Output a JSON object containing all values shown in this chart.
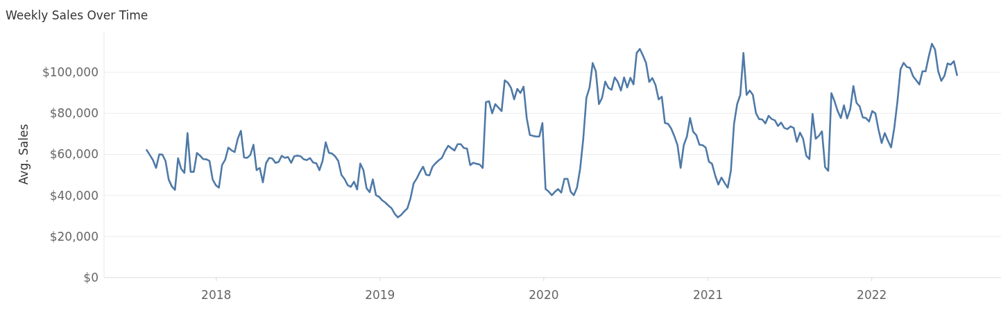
{
  "chart_data": {
    "type": "line",
    "title": "Weekly Sales Over Time",
    "ylabel": "Avg. Sales",
    "xlim": [
      "2017-04-26",
      "2022-10-16"
    ],
    "xticks": [
      {
        "value": "2018-01-01",
        "label": "2018"
      },
      {
        "value": "2019-01-01",
        "label": "2019"
      },
      {
        "value": "2020-01-01",
        "label": "2020"
      },
      {
        "value": "2021-01-01",
        "label": "2021"
      },
      {
        "value": "2022-01-01",
        "label": "2022"
      }
    ],
    "ylim": [
      0,
      120000
    ],
    "yticks": [
      {
        "value": 0,
        "label": "$0"
      },
      {
        "value": 20000,
        "label": "$20,000"
      },
      {
        "value": 40000,
        "label": "$40,000"
      },
      {
        "value": 60000,
        "label": "$60,000"
      },
      {
        "value": 80000,
        "label": "$80,000"
      },
      {
        "value": 100000,
        "label": "$100,000"
      }
    ],
    "grid": "y",
    "marker": "none",
    "line_style": "solid",
    "x": [
      "2017-07-30",
      "2017-08-06",
      "2017-08-13",
      "2017-08-20",
      "2017-08-27",
      "2017-09-03",
      "2017-09-10",
      "2017-09-17",
      "2017-09-24",
      "2017-10-01",
      "2017-10-08",
      "2017-10-15",
      "2017-10-22",
      "2017-10-29",
      "2017-11-05",
      "2017-11-12",
      "2017-11-19",
      "2017-11-26",
      "2017-12-03",
      "2017-12-10",
      "2017-12-17",
      "2017-12-24",
      "2017-12-31",
      "2018-01-07",
      "2018-01-14",
      "2018-01-21",
      "2018-01-28",
      "2018-02-04",
      "2018-02-11",
      "2018-02-18",
      "2018-02-25",
      "2018-03-04",
      "2018-03-11",
      "2018-03-18",
      "2018-03-25",
      "2018-04-01",
      "2018-04-08",
      "2018-04-15",
      "2018-04-22",
      "2018-04-29",
      "2018-05-06",
      "2018-05-13",
      "2018-05-20",
      "2018-05-27",
      "2018-06-03",
      "2018-06-10",
      "2018-06-17",
      "2018-06-24",
      "2018-07-01",
      "2018-07-08",
      "2018-07-15",
      "2018-07-22",
      "2018-07-29",
      "2018-08-05",
      "2018-08-12",
      "2018-08-19",
      "2018-08-26",
      "2018-09-02",
      "2018-09-09",
      "2018-09-16",
      "2018-09-23",
      "2018-09-30",
      "2018-10-07",
      "2018-10-14",
      "2018-10-21",
      "2018-10-28",
      "2018-11-04",
      "2018-11-11",
      "2018-11-18",
      "2018-11-25",
      "2018-12-02",
      "2018-12-09",
      "2018-12-16",
      "2018-12-23",
      "2018-12-30",
      "2019-01-06",
      "2019-01-13",
      "2019-01-20",
      "2019-01-27",
      "2019-02-03",
      "2019-02-10",
      "2019-02-17",
      "2019-02-24",
      "2019-03-03",
      "2019-03-10",
      "2019-03-17",
      "2019-03-24",
      "2019-03-31",
      "2019-04-07",
      "2019-04-14",
      "2019-04-21",
      "2019-04-28",
      "2019-05-05",
      "2019-05-12",
      "2019-05-19",
      "2019-05-26",
      "2019-06-02",
      "2019-06-09",
      "2019-06-16",
      "2019-06-23",
      "2019-06-30",
      "2019-07-07",
      "2019-07-14",
      "2019-07-21",
      "2019-07-28",
      "2019-08-04",
      "2019-08-11",
      "2019-08-18",
      "2019-08-25",
      "2019-09-01",
      "2019-09-08",
      "2019-09-15",
      "2019-09-22",
      "2019-09-29",
      "2019-10-06",
      "2019-10-13",
      "2019-10-20",
      "2019-10-27",
      "2019-11-03",
      "2019-11-10",
      "2019-11-17",
      "2019-11-24",
      "2019-12-01",
      "2019-12-08",
      "2019-12-15",
      "2019-12-22",
      "2019-12-29",
      "2020-01-05",
      "2020-01-12",
      "2020-01-19",
      "2020-01-26",
      "2020-02-02",
      "2020-02-09",
      "2020-02-16",
      "2020-02-23",
      "2020-03-01",
      "2020-03-08",
      "2020-03-15",
      "2020-03-22",
      "2020-03-29",
      "2020-04-05",
      "2020-04-12",
      "2020-04-19",
      "2020-04-26",
      "2020-05-03",
      "2020-05-10",
      "2020-05-17",
      "2020-05-24",
      "2020-05-31",
      "2020-06-07",
      "2020-06-14",
      "2020-06-21",
      "2020-06-28",
      "2020-07-05",
      "2020-07-12",
      "2020-07-19",
      "2020-07-26",
      "2020-08-02",
      "2020-08-09",
      "2020-08-16",
      "2020-08-23",
      "2020-08-30",
      "2020-09-06",
      "2020-09-13",
      "2020-09-20",
      "2020-09-27",
      "2020-10-04",
      "2020-10-11",
      "2020-10-18",
      "2020-10-25",
      "2020-11-01",
      "2020-11-08",
      "2020-11-15",
      "2020-11-22",
      "2020-11-29",
      "2020-12-06",
      "2020-12-13",
      "2020-12-20",
      "2020-12-27",
      "2021-01-03",
      "2021-01-10",
      "2021-01-17",
      "2021-01-24",
      "2021-01-31",
      "2021-02-07",
      "2021-02-14",
      "2021-02-21",
      "2021-02-28",
      "2021-03-07",
      "2021-03-14",
      "2021-03-21",
      "2021-03-28",
      "2021-04-04",
      "2021-04-11",
      "2021-04-18",
      "2021-04-25",
      "2021-05-02",
      "2021-05-09",
      "2021-05-16",
      "2021-05-23",
      "2021-05-30",
      "2021-06-06",
      "2021-06-13",
      "2021-06-20",
      "2021-06-27",
      "2021-07-04",
      "2021-07-11",
      "2021-07-18",
      "2021-07-25",
      "2021-08-01",
      "2021-08-08",
      "2021-08-15",
      "2021-08-22",
      "2021-08-29",
      "2021-09-05",
      "2021-09-12",
      "2021-09-19",
      "2021-09-26",
      "2021-10-03",
      "2021-10-10",
      "2021-10-17",
      "2021-10-24",
      "2021-10-31",
      "2021-11-07",
      "2021-11-14",
      "2021-11-21",
      "2021-11-28",
      "2021-12-05",
      "2021-12-12",
      "2021-12-19",
      "2021-12-26",
      "2022-01-02",
      "2022-01-09",
      "2022-01-16",
      "2022-01-23",
      "2022-01-30",
      "2022-02-06",
      "2022-02-13",
      "2022-02-20",
      "2022-02-27",
      "2022-03-06",
      "2022-03-13",
      "2022-03-20",
      "2022-03-27",
      "2022-04-03",
      "2022-04-10",
      "2022-04-17",
      "2022-04-24",
      "2022-05-01",
      "2022-05-08",
      "2022-05-15",
      "2022-05-22",
      "2022-05-29",
      "2022-06-05",
      "2022-06-12",
      "2022-06-19",
      "2022-06-26",
      "2022-07-03",
      "2022-07-10"
    ],
    "series": [
      {
        "color": "#4e79a7",
        "values": [
          62100,
          59700,
          57200,
          53400,
          60000,
          59900,
          56800,
          47800,
          44400,
          42700,
          58100,
          52900,
          51000,
          70400,
          51500,
          51500,
          60700,
          59400,
          57700,
          57600,
          56800,
          47800,
          45000,
          43800,
          54800,
          57400,
          63300,
          62000,
          61100,
          67600,
          71500,
          58500,
          58300,
          59700,
          64700,
          52300,
          53400,
          46400,
          55700,
          58300,
          58000,
          55900,
          56300,
          59300,
          58300,
          58700,
          55900,
          59100,
          59400,
          59100,
          57600,
          57200,
          58200,
          56000,
          55700,
          52300,
          56800,
          65900,
          60800,
          60400,
          59100,
          56800,
          50000,
          48000,
          45000,
          44200,
          46700,
          42900,
          55500,
          52300,
          43500,
          41600,
          47800,
          40100,
          39300,
          37600,
          36500,
          35000,
          33700,
          31000,
          29300,
          30500,
          32200,
          33700,
          38700,
          45900,
          48300,
          51400,
          54000,
          50000,
          49800,
          54000,
          55700,
          57100,
          58300,
          61600,
          64200,
          63000,
          61900,
          65000,
          65000,
          63100,
          62800,
          54800,
          55900,
          55400,
          55100,
          53400,
          85400,
          85900,
          80000,
          84500,
          82800,
          81100,
          96100,
          94900,
          92400,
          86800,
          91900,
          89900,
          93000,
          77700,
          69500,
          69000,
          68700,
          68700,
          75300,
          43100,
          41900,
          40100,
          41800,
          43100,
          41400,
          48100,
          48100,
          41800,
          40100,
          43800,
          52900,
          67600,
          87600,
          92600,
          104500,
          100500,
          84500,
          87600,
          95500,
          92400,
          91500,
          97500,
          95300,
          91100,
          97500,
          92600,
          97300,
          94100,
          109400,
          111400,
          108200,
          104500,
          95300,
          97200,
          93800,
          86800,
          88100,
          75300,
          74900,
          72600,
          68900,
          64500,
          53400,
          64500,
          68700,
          77700,
          71000,
          69300,
          64700,
          64500,
          63300,
          56500,
          55400,
          49700,
          45300,
          48700,
          46100,
          43800,
          52000,
          74900,
          84500,
          89000,
          109400,
          89000,
          91100,
          89000,
          80000,
          77200,
          77000,
          75100,
          78800,
          77200,
          76600,
          73800,
          75500,
          72900,
          72300,
          73600,
          72900,
          66100,
          70600,
          67600,
          59400,
          57700,
          79700,
          67600,
          69000,
          71200,
          53800,
          52000,
          89800,
          85900,
          81100,
          77700,
          83900,
          77500,
          82000,
          93300,
          85100,
          83400,
          78000,
          77700,
          76000,
          81100,
          80000,
          72100,
          65500,
          70400,
          66700,
          63400,
          72600,
          85400,
          101300,
          104600,
          102600,
          102200,
          98100,
          96100,
          94100,
          100500,
          100500,
          107700,
          113900,
          111100,
          100500,
          95800,
          98300,
          104300,
          103700,
          105400,
          98600
        ]
      }
    ]
  }
}
